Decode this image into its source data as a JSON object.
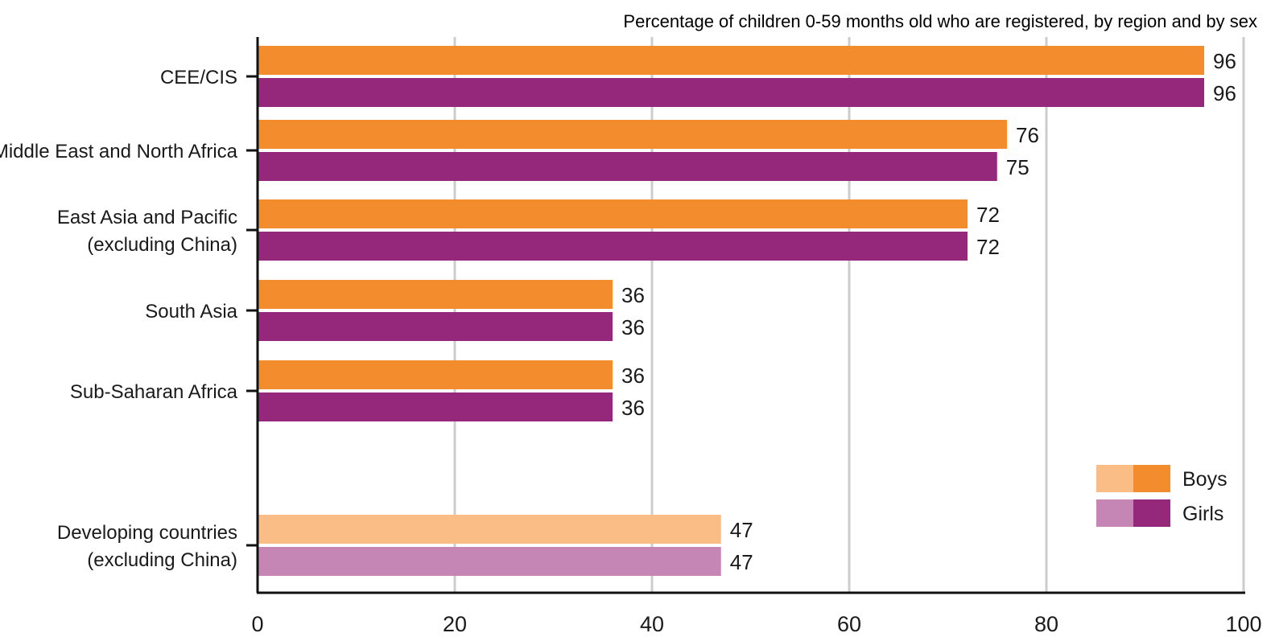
{
  "chart_data": {
    "type": "bar",
    "orientation": "horizontal",
    "title": "Percentage of children 0-59 months old who are registered, by region and by sex",
    "xlim": [
      0,
      100
    ],
    "x_ticks": [
      "0",
      "20",
      "40",
      "60",
      "80",
      "100"
    ],
    "grid": "vertical",
    "legend_position": "bottom-right",
    "categories": [
      [
        "CEE/CIS"
      ],
      [
        "Middle East and North Africa"
      ],
      [
        "East Asia and Pacific",
        "(excluding China)"
      ],
      [
        "South Asia"
      ],
      [
        "Sub-Saharan Africa"
      ],
      [
        "Developing countries",
        "(excluding China)"
      ]
    ],
    "series": [
      {
        "name": "Boys",
        "values": [
          96,
          76,
          72,
          36,
          36,
          47
        ],
        "color": "#f28c2d",
        "light_color": "#f9bd85"
      },
      {
        "name": "Girls",
        "values": [
          96,
          75,
          72,
          36,
          36,
          47
        ],
        "color": "#95287a",
        "light_color": "#c586b6"
      }
    ],
    "light_categories": [
      "Developing countries"
    ]
  }
}
